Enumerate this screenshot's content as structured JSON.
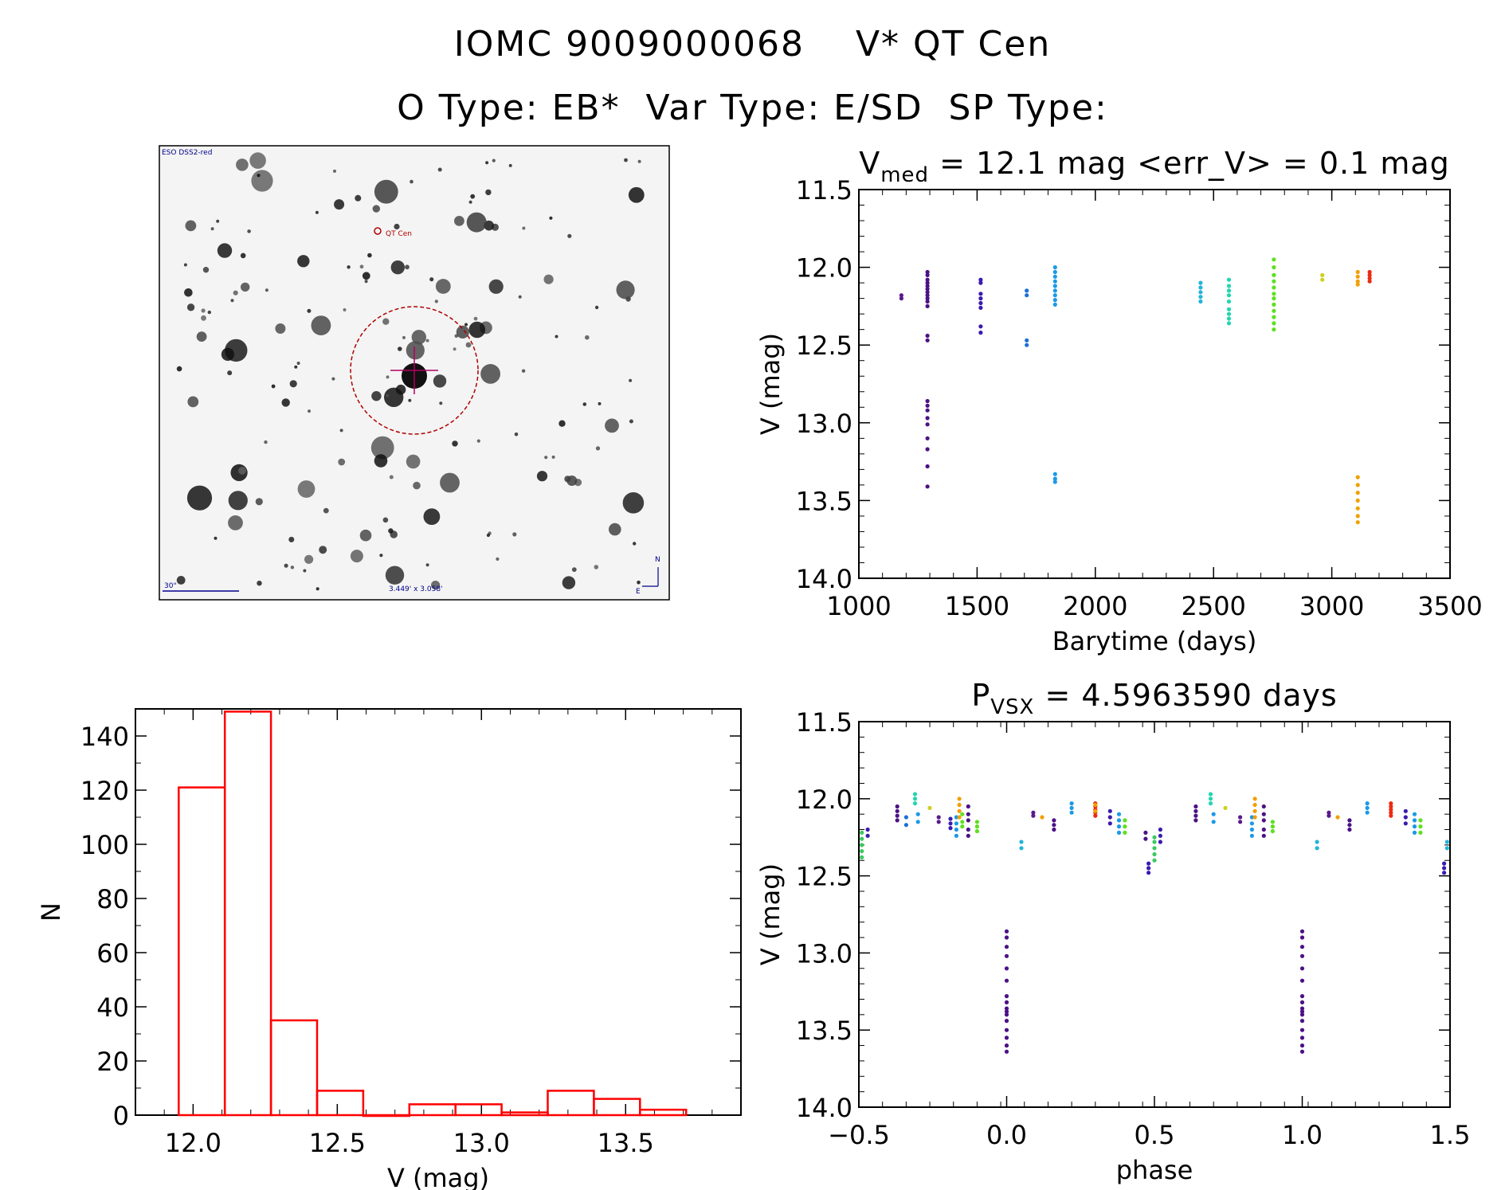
{
  "header": {
    "line1": "IOMC 9009000068    V* QT Cen",
    "line2": "O Type: EB*  Var Type: E/SD  SP Type:"
  },
  "finding_chart": {
    "survey": "ESO DSS2-red",
    "target_label": "QT Cen",
    "scale_label": "30\"",
    "size_label": "3.449' x 3.058'",
    "north": "N",
    "east": "E",
    "marker_color": "#b00000"
  },
  "colors": {
    "hist": "#ff0000",
    "frame": "#000000"
  },
  "chart_data": [
    {
      "type": "scatter",
      "id": "lightcurve",
      "title_main": "V",
      "title_sub": "med",
      "title_rest": " = 12.1 mag <err_V> = 0.1 mag",
      "xlabel": "Barytime (days)",
      "ylabel": "V (mag)",
      "xlim": [
        1000,
        3500
      ],
      "ylim": [
        14.0,
        11.5
      ],
      "xticks": [
        1000,
        1500,
        2000,
        2500,
        3000,
        3500
      ],
      "xtick_labels": [
        "1000",
        "1500",
        "2000",
        "2500",
        "3000",
        "3500"
      ],
      "yticks": [
        11.5,
        12.0,
        12.5,
        13.0,
        13.5,
        14.0
      ],
      "ytick_labels": [
        "11.5",
        "12.0",
        "12.5",
        "13.0",
        "13.5",
        "14.0"
      ],
      "clusters": [
        {
          "x": 1180,
          "y": [
            12.18,
            12.2
          ],
          "color": "#5a1a8c"
        },
        {
          "x": 1290,
          "y": [
            12.03,
            12.05,
            12.08,
            12.1,
            12.12,
            12.14,
            12.16,
            12.18,
            12.2,
            12.22,
            12.25,
            12.44,
            12.47,
            12.86,
            12.89,
            12.92,
            12.97,
            13.01,
            13.1,
            13.17,
            13.28,
            13.41
          ],
          "color": "#4b1185"
        },
        {
          "x": 1515,
          "y": [
            12.08,
            12.1,
            12.17,
            12.2,
            12.23,
            12.26,
            12.38,
            12.42
          ],
          "color": "#3b1ab0"
        },
        {
          "x": 1710,
          "y": [
            12.15,
            12.18,
            12.47,
            12.5
          ],
          "color": "#1e6fd6"
        },
        {
          "x": 1830,
          "y": [
            12.0,
            12.03,
            12.06,
            12.09,
            12.12,
            12.15,
            12.18,
            12.21,
            12.24,
            13.33,
            13.36,
            13.38
          ],
          "color": "#1a9ae6"
        },
        {
          "x": 2445,
          "y": [
            12.1,
            12.13,
            12.16,
            12.19,
            12.22
          ],
          "color": "#22b4d8"
        },
        {
          "x": 2565,
          "y": [
            12.08,
            12.12,
            12.15,
            12.18,
            12.22,
            12.27,
            12.3,
            12.33,
            12.36
          ],
          "color": "#22d6b0"
        },
        {
          "x": 2755,
          "y": [
            11.95,
            12.0,
            12.05,
            12.09,
            12.13,
            12.17,
            12.2,
            12.24,
            12.28,
            12.32,
            12.36,
            12.4
          ],
          "color": "#5ee020"
        },
        {
          "x": 2960,
          "y": [
            12.05,
            12.08
          ],
          "color": "#d0d020"
        },
        {
          "x": 3110,
          "y": [
            12.03,
            12.06,
            12.09,
            12.11,
            13.35,
            13.4,
            13.45,
            13.5,
            13.55,
            13.6,
            13.64
          ],
          "color": "#f0a000"
        },
        {
          "x": 3160,
          "y": [
            12.03,
            12.05,
            12.07,
            12.09
          ],
          "color": "#ee2a10"
        }
      ]
    },
    {
      "type": "scatter",
      "id": "phased",
      "title_main": "P",
      "title_sub": "VSX",
      "title_rest": " = 4.5963590 days",
      "xlabel": "phase",
      "ylabel": "V (mag)",
      "xlim": [
        -0.5,
        1.5
      ],
      "ylim": [
        14.0,
        11.5
      ],
      "xticks": [
        -0.5,
        0.0,
        0.5,
        1.0,
        1.5
      ],
      "xtick_labels": [
        "−0.5",
        "0.0",
        "0.5",
        "1.0",
        "1.5"
      ],
      "yticks": [
        11.5,
        12.0,
        12.5,
        13.0,
        13.5,
        14.0
      ],
      "ytick_labels": [
        "11.5",
        "12.0",
        "12.5",
        "13.0",
        "13.5",
        "14.0"
      ],
      "clusters": [
        {
          "x": -0.49,
          "y": [
            12.22,
            12.26,
            12.3,
            12.34,
            12.38
          ],
          "color": "#3cc860"
        },
        {
          "x": -0.47,
          "y": [
            12.2,
            12.24
          ],
          "color": "#3b1ab0"
        },
        {
          "x": -0.37,
          "y": [
            12.05,
            12.08,
            12.11,
            12.14
          ],
          "color": "#4b1185"
        },
        {
          "x": -0.34,
          "y": [
            12.12,
            12.17
          ],
          "color": "#1e6fd6"
        },
        {
          "x": -0.31,
          "y": [
            11.97,
            12.0,
            12.03
          ],
          "color": "#22d6b0"
        },
        {
          "x": -0.3,
          "y": [
            12.1,
            12.15
          ],
          "color": "#1a9ae6"
        },
        {
          "x": -0.26,
          "y": [
            12.06
          ],
          "color": "#d0d020"
        },
        {
          "x": -0.23,
          "y": [
            12.12,
            12.15
          ],
          "color": "#5a1a8c"
        },
        {
          "x": -0.19,
          "y": [
            12.13,
            12.16,
            12.19
          ],
          "color": "#3b1ab0"
        },
        {
          "x": -0.17,
          "y": [
            12.12,
            12.16,
            12.2,
            12.24
          ],
          "color": "#1a9ae6"
        },
        {
          "x": -0.16,
          "y": [
            12.0,
            12.04,
            12.08,
            12.12
          ],
          "color": "#f0a000"
        },
        {
          "x": -0.15,
          "y": [
            12.1,
            12.15,
            12.18
          ],
          "color": "#5ee020"
        },
        {
          "x": -0.13,
          "y": [
            12.05,
            12.1,
            12.14,
            12.2,
            12.24
          ],
          "color": "#4b1185"
        },
        {
          "x": -0.1,
          "y": [
            12.15,
            12.18,
            12.21
          ],
          "color": "#5ee020"
        },
        {
          "x": 0.0,
          "y": [
            12.86,
            12.9,
            12.96,
            13.02,
            13.1,
            13.18,
            13.28,
            13.32,
            13.36,
            13.38,
            13.4,
            13.44,
            13.5,
            13.55,
            13.6,
            13.64
          ],
          "color": "#4b1185"
        },
        {
          "x": 0.05,
          "y": [
            12.28,
            12.32
          ],
          "color": "#22b4d8"
        },
        {
          "x": 0.09,
          "y": [
            12.09,
            12.11
          ],
          "color": "#5a1a8c"
        },
        {
          "x": 0.12,
          "y": [
            12.12
          ],
          "color": "#f0a000"
        },
        {
          "x": 0.16,
          "y": [
            12.14,
            12.17,
            12.2
          ],
          "color": "#4b1185"
        },
        {
          "x": 0.22,
          "y": [
            12.03,
            12.06,
            12.09
          ],
          "color": "#1a9ae6"
        },
        {
          "x": 0.3,
          "y": [
            12.03,
            12.05,
            12.07,
            12.09,
            12.11
          ],
          "color": "#ee2a10"
        },
        {
          "x": 0.3,
          "y": [
            12.04,
            12.08
          ],
          "color": "#f0a000"
        },
        {
          "x": 0.35,
          "y": [
            12.08,
            12.12,
            12.16
          ],
          "color": "#3b1ab0"
        },
        {
          "x": 0.38,
          "y": [
            12.1,
            12.14,
            12.18,
            12.22
          ],
          "color": "#1a9ae6"
        },
        {
          "x": 0.4,
          "y": [
            12.14,
            12.18,
            12.22
          ],
          "color": "#5ee020"
        },
        {
          "x": 0.47,
          "y": [
            12.22,
            12.26
          ],
          "color": "#4b1185"
        },
        {
          "x": 0.48,
          "y": [
            12.42,
            12.45,
            12.48
          ],
          "color": "#3b1ab0"
        },
        {
          "x": 0.5,
          "y": [
            12.25,
            12.28,
            12.32,
            12.36,
            12.4
          ],
          "color": "#3cc860"
        },
        {
          "x": 0.52,
          "y": [
            12.2,
            12.24,
            12.28
          ],
          "color": "#3b1ab0"
        },
        {
          "x": 0.64,
          "y": [
            12.05,
            12.08,
            12.11,
            12.14
          ],
          "color": "#4b1185"
        },
        {
          "x": 0.69,
          "y": [
            11.97,
            12.0,
            12.03
          ],
          "color": "#22d6b0"
        },
        {
          "x": 0.7,
          "y": [
            12.1,
            12.15
          ],
          "color": "#1a9ae6"
        },
        {
          "x": 0.74,
          "y": [
            12.06
          ],
          "color": "#d0d020"
        },
        {
          "x": 0.79,
          "y": [
            12.12,
            12.15
          ],
          "color": "#5a1a8c"
        },
        {
          "x": 0.83,
          "y": [
            12.12,
            12.16,
            12.2,
            12.24
          ],
          "color": "#1a9ae6"
        },
        {
          "x": 0.84,
          "y": [
            12.0,
            12.04,
            12.08,
            12.12
          ],
          "color": "#f0a000"
        },
        {
          "x": 0.87,
          "y": [
            12.05,
            12.1,
            12.14,
            12.2,
            12.24
          ],
          "color": "#4b1185"
        },
        {
          "x": 0.9,
          "y": [
            12.15,
            12.18,
            12.21
          ],
          "color": "#5ee020"
        },
        {
          "x": 1.0,
          "y": [
            12.86,
            12.9,
            12.96,
            13.02,
            13.1,
            13.18,
            13.28,
            13.32,
            13.36,
            13.38,
            13.4,
            13.44,
            13.5,
            13.55,
            13.6,
            13.64
          ],
          "color": "#4b1185"
        },
        {
          "x": 1.05,
          "y": [
            12.28,
            12.32
          ],
          "color": "#22b4d8"
        },
        {
          "x": 1.09,
          "y": [
            12.09,
            12.11
          ],
          "color": "#5a1a8c"
        },
        {
          "x": 1.12,
          "y": [
            12.12
          ],
          "color": "#f0a000"
        },
        {
          "x": 1.16,
          "y": [
            12.14,
            12.17,
            12.2
          ],
          "color": "#4b1185"
        },
        {
          "x": 1.22,
          "y": [
            12.03,
            12.06,
            12.09
          ],
          "color": "#1a9ae6"
        },
        {
          "x": 1.3,
          "y": [
            12.03,
            12.05,
            12.07,
            12.09,
            12.11
          ],
          "color": "#ee2a10"
        },
        {
          "x": 1.35,
          "y": [
            12.08,
            12.12,
            12.16
          ],
          "color": "#3b1ab0"
        },
        {
          "x": 1.38,
          "y": [
            12.1,
            12.14,
            12.18,
            12.22
          ],
          "color": "#1a9ae6"
        },
        {
          "x": 1.4,
          "y": [
            12.14,
            12.18,
            12.22
          ],
          "color": "#5ee020"
        },
        {
          "x": 1.48,
          "y": [
            12.42,
            12.45,
            12.48
          ],
          "color": "#3b1ab0"
        },
        {
          "x": 1.49,
          "y": [
            12.28,
            12.32
          ],
          "color": "#22b4d8"
        }
      ]
    },
    {
      "type": "bar",
      "id": "histogram",
      "title": "",
      "xlabel": "V (mag)",
      "ylabel": "N",
      "xlim": [
        11.8,
        13.9
      ],
      "ylim": [
        0,
        150
      ],
      "xticks": [
        12.0,
        12.5,
        13.0,
        13.5
      ],
      "xtick_labels": [
        "12.0",
        "12.5",
        "13.0",
        "13.5"
      ],
      "yticks": [
        0,
        20,
        40,
        60,
        80,
        100,
        120,
        140
      ],
      "ytick_labels": [
        "0",
        "20",
        "40",
        "60",
        "80",
        "100",
        "120",
        "140"
      ],
      "bin_edges": [
        11.95,
        12.11,
        12.27,
        12.43,
        12.59,
        12.75,
        12.91,
        13.07,
        13.23,
        13.39,
        13.55,
        13.71
      ],
      "values": [
        121,
        149,
        35,
        9,
        0,
        4,
        4,
        1,
        9,
        6,
        2
      ]
    }
  ]
}
